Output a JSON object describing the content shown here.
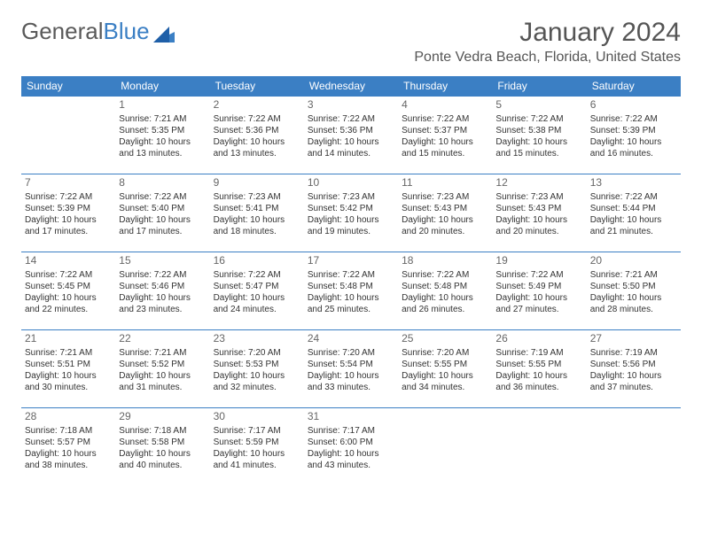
{
  "logo": {
    "text1": "General",
    "text2": "Blue",
    "brand_color": "#3b7fc4"
  },
  "title": {
    "month": "January 2024",
    "location": "Ponte Vedra Beach, Florida, United States"
  },
  "colors": {
    "header_bg": "#3b7fc4",
    "header_fg": "#ffffff",
    "rule": "#3b7fc4",
    "text": "#333333"
  },
  "weekdays": [
    "Sunday",
    "Monday",
    "Tuesday",
    "Wednesday",
    "Thursday",
    "Friday",
    "Saturday"
  ],
  "weeks": [
    [
      null,
      {
        "n": "1",
        "sr": "Sunrise: 7:21 AM",
        "ss": "Sunset: 5:35 PM",
        "d1": "Daylight: 10 hours",
        "d2": "and 13 minutes."
      },
      {
        "n": "2",
        "sr": "Sunrise: 7:22 AM",
        "ss": "Sunset: 5:36 PM",
        "d1": "Daylight: 10 hours",
        "d2": "and 13 minutes."
      },
      {
        "n": "3",
        "sr": "Sunrise: 7:22 AM",
        "ss": "Sunset: 5:36 PM",
        "d1": "Daylight: 10 hours",
        "d2": "and 14 minutes."
      },
      {
        "n": "4",
        "sr": "Sunrise: 7:22 AM",
        "ss": "Sunset: 5:37 PM",
        "d1": "Daylight: 10 hours",
        "d2": "and 15 minutes."
      },
      {
        "n": "5",
        "sr": "Sunrise: 7:22 AM",
        "ss": "Sunset: 5:38 PM",
        "d1": "Daylight: 10 hours",
        "d2": "and 15 minutes."
      },
      {
        "n": "6",
        "sr": "Sunrise: 7:22 AM",
        "ss": "Sunset: 5:39 PM",
        "d1": "Daylight: 10 hours",
        "d2": "and 16 minutes."
      }
    ],
    [
      {
        "n": "7",
        "sr": "Sunrise: 7:22 AM",
        "ss": "Sunset: 5:39 PM",
        "d1": "Daylight: 10 hours",
        "d2": "and 17 minutes."
      },
      {
        "n": "8",
        "sr": "Sunrise: 7:22 AM",
        "ss": "Sunset: 5:40 PM",
        "d1": "Daylight: 10 hours",
        "d2": "and 17 minutes."
      },
      {
        "n": "9",
        "sr": "Sunrise: 7:23 AM",
        "ss": "Sunset: 5:41 PM",
        "d1": "Daylight: 10 hours",
        "d2": "and 18 minutes."
      },
      {
        "n": "10",
        "sr": "Sunrise: 7:23 AM",
        "ss": "Sunset: 5:42 PM",
        "d1": "Daylight: 10 hours",
        "d2": "and 19 minutes."
      },
      {
        "n": "11",
        "sr": "Sunrise: 7:23 AM",
        "ss": "Sunset: 5:43 PM",
        "d1": "Daylight: 10 hours",
        "d2": "and 20 minutes."
      },
      {
        "n": "12",
        "sr": "Sunrise: 7:23 AM",
        "ss": "Sunset: 5:43 PM",
        "d1": "Daylight: 10 hours",
        "d2": "and 20 minutes."
      },
      {
        "n": "13",
        "sr": "Sunrise: 7:22 AM",
        "ss": "Sunset: 5:44 PM",
        "d1": "Daylight: 10 hours",
        "d2": "and 21 minutes."
      }
    ],
    [
      {
        "n": "14",
        "sr": "Sunrise: 7:22 AM",
        "ss": "Sunset: 5:45 PM",
        "d1": "Daylight: 10 hours",
        "d2": "and 22 minutes."
      },
      {
        "n": "15",
        "sr": "Sunrise: 7:22 AM",
        "ss": "Sunset: 5:46 PM",
        "d1": "Daylight: 10 hours",
        "d2": "and 23 minutes."
      },
      {
        "n": "16",
        "sr": "Sunrise: 7:22 AM",
        "ss": "Sunset: 5:47 PM",
        "d1": "Daylight: 10 hours",
        "d2": "and 24 minutes."
      },
      {
        "n": "17",
        "sr": "Sunrise: 7:22 AM",
        "ss": "Sunset: 5:48 PM",
        "d1": "Daylight: 10 hours",
        "d2": "and 25 minutes."
      },
      {
        "n": "18",
        "sr": "Sunrise: 7:22 AM",
        "ss": "Sunset: 5:48 PM",
        "d1": "Daylight: 10 hours",
        "d2": "and 26 minutes."
      },
      {
        "n": "19",
        "sr": "Sunrise: 7:22 AM",
        "ss": "Sunset: 5:49 PM",
        "d1": "Daylight: 10 hours",
        "d2": "and 27 minutes."
      },
      {
        "n": "20",
        "sr": "Sunrise: 7:21 AM",
        "ss": "Sunset: 5:50 PM",
        "d1": "Daylight: 10 hours",
        "d2": "and 28 minutes."
      }
    ],
    [
      {
        "n": "21",
        "sr": "Sunrise: 7:21 AM",
        "ss": "Sunset: 5:51 PM",
        "d1": "Daylight: 10 hours",
        "d2": "and 30 minutes."
      },
      {
        "n": "22",
        "sr": "Sunrise: 7:21 AM",
        "ss": "Sunset: 5:52 PM",
        "d1": "Daylight: 10 hours",
        "d2": "and 31 minutes."
      },
      {
        "n": "23",
        "sr": "Sunrise: 7:20 AM",
        "ss": "Sunset: 5:53 PM",
        "d1": "Daylight: 10 hours",
        "d2": "and 32 minutes."
      },
      {
        "n": "24",
        "sr": "Sunrise: 7:20 AM",
        "ss": "Sunset: 5:54 PM",
        "d1": "Daylight: 10 hours",
        "d2": "and 33 minutes."
      },
      {
        "n": "25",
        "sr": "Sunrise: 7:20 AM",
        "ss": "Sunset: 5:55 PM",
        "d1": "Daylight: 10 hours",
        "d2": "and 34 minutes."
      },
      {
        "n": "26",
        "sr": "Sunrise: 7:19 AM",
        "ss": "Sunset: 5:55 PM",
        "d1": "Daylight: 10 hours",
        "d2": "and 36 minutes."
      },
      {
        "n": "27",
        "sr": "Sunrise: 7:19 AM",
        "ss": "Sunset: 5:56 PM",
        "d1": "Daylight: 10 hours",
        "d2": "and 37 minutes."
      }
    ],
    [
      {
        "n": "28",
        "sr": "Sunrise: 7:18 AM",
        "ss": "Sunset: 5:57 PM",
        "d1": "Daylight: 10 hours",
        "d2": "and 38 minutes."
      },
      {
        "n": "29",
        "sr": "Sunrise: 7:18 AM",
        "ss": "Sunset: 5:58 PM",
        "d1": "Daylight: 10 hours",
        "d2": "and 40 minutes."
      },
      {
        "n": "30",
        "sr": "Sunrise: 7:17 AM",
        "ss": "Sunset: 5:59 PM",
        "d1": "Daylight: 10 hours",
        "d2": "and 41 minutes."
      },
      {
        "n": "31",
        "sr": "Sunrise: 7:17 AM",
        "ss": "Sunset: 6:00 PM",
        "d1": "Daylight: 10 hours",
        "d2": "and 43 minutes."
      },
      null,
      null,
      null
    ]
  ]
}
